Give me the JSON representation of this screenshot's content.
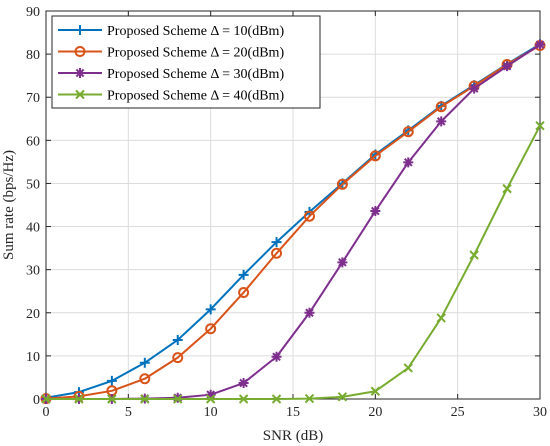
{
  "chart_data": {
    "type": "line",
    "xlabel": "SNR (dB)",
    "ylabel": "Sum rate (bps/Hz)",
    "xlim": [
      0,
      30
    ],
    "ylim": [
      0,
      90
    ],
    "xticks": [
      0,
      5,
      10,
      15,
      20,
      25,
      30
    ],
    "yticks": [
      0,
      10,
      20,
      30,
      40,
      50,
      60,
      70,
      80,
      90
    ],
    "grid": true,
    "legend_position": "top-left",
    "x": [
      0,
      2,
      4,
      6,
      8,
      10,
      12,
      14,
      16,
      18,
      20,
      22,
      24,
      26,
      28,
      30
    ],
    "series": [
      {
        "name": "Proposed Scheme Δ = 10(dBm)",
        "color": "#0072BD",
        "marker": "plus",
        "values": [
          0.3,
          1.6,
          4.2,
          8.4,
          13.7,
          20.8,
          28.8,
          36.4,
          43.4,
          50.0,
          56.7,
          62.3,
          68.0,
          72.8,
          77.7,
          82.3
        ]
      },
      {
        "name": "Proposed Scheme Δ = 20(dBm)",
        "color": "#D95319",
        "marker": "circle",
        "values": [
          0.1,
          0.6,
          1.9,
          4.7,
          9.6,
          16.3,
          24.7,
          33.8,
          42.4,
          49.8,
          56.4,
          62.0,
          67.8,
          72.6,
          77.6,
          82.0
        ]
      },
      {
        "name": "Proposed Scheme Δ = 30(dBm)",
        "color": "#7E2F8E",
        "marker": "star",
        "values": [
          0.0,
          0.0,
          0.0,
          0.1,
          0.3,
          1.0,
          3.7,
          9.8,
          20.0,
          31.7,
          43.6,
          54.9,
          64.4,
          72.0,
          77.2,
          82.2
        ]
      },
      {
        "name": "Proposed Scheme Δ = 40(dBm)",
        "color": "#77AC30",
        "marker": "x",
        "values": [
          0.0,
          0.0,
          0.0,
          0.0,
          0.0,
          0.0,
          0.0,
          0.0,
          0.1,
          0.5,
          1.8,
          7.2,
          18.8,
          33.4,
          48.8,
          63.4
        ]
      }
    ]
  }
}
